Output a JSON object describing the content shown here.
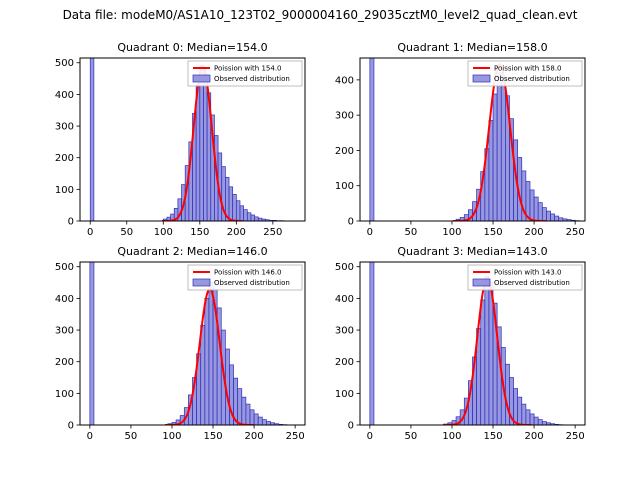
{
  "figure": {
    "suptitle": "Data file: modeM0/AS1A10_123T02_9000004160_29035cztM0_level2_quad_clean.evt"
  },
  "colors": {
    "bar_fill": "#7b7bd9",
    "bar_edge": "#2e2eb8",
    "curve": "#ff0000",
    "axis": "#000000",
    "legend_border": "#b0b0b0"
  },
  "chart_data": [
    {
      "type": "bar",
      "subtype": "histogram",
      "title": "Quadrant 0: Median=154.0",
      "median": 154.0,
      "legend": [
        "Poission with 154.0",
        "Observed distribution"
      ],
      "bin_start": 0,
      "bin_width": 5,
      "counts": [
        520,
        0,
        0,
        0,
        0,
        0,
        0,
        0,
        0,
        0,
        0,
        0,
        0,
        0,
        0,
        0,
        0,
        0,
        0,
        0,
        6,
        12,
        22,
        40,
        70,
        115,
        175,
        250,
        340,
        430,
        490,
        465,
        405,
        335,
        270,
        215,
        172,
        138,
        108,
        84,
        64,
        48,
        36,
        26,
        19,
        13,
        9,
        6,
        4,
        2,
        2,
        1,
        1,
        0
      ],
      "curve": {
        "type": "poisson",
        "lambda": 154.0,
        "sigma": 12.4,
        "amplitude": 490
      },
      "xlim": [
        -14,
        294
      ],
      "ylim": [
        0,
        515
      ],
      "xticks": [
        0,
        50,
        100,
        150,
        200,
        250
      ],
      "yticks": [
        0,
        100,
        200,
        300,
        400,
        500
      ]
    },
    {
      "type": "bar",
      "subtype": "histogram",
      "title": "Quadrant 1: Median=158.0",
      "median": 158.0,
      "legend": [
        "Poission with 158.0",
        "Observed distribution"
      ],
      "bin_start": 0,
      "bin_width": 5,
      "counts": [
        480,
        0,
        0,
        0,
        0,
        0,
        0,
        0,
        0,
        0,
        0,
        0,
        0,
        0,
        0,
        0,
        0,
        0,
        0,
        0,
        0,
        5,
        10,
        18,
        32,
        55,
        90,
        140,
        205,
        285,
        360,
        420,
        410,
        355,
        290,
        230,
        180,
        142,
        112,
        88,
        68,
        52,
        38,
        28,
        20,
        14,
        9,
        6,
        4,
        2,
        1
      ],
      "curve": {
        "type": "poisson",
        "lambda": 158.0,
        "sigma": 12.6,
        "amplitude": 445
      },
      "xlim": [
        -12,
        262
      ],
      "ylim": [
        0,
        462
      ],
      "xticks": [
        0,
        50,
        100,
        150,
        200,
        250
      ],
      "yticks": [
        0,
        100,
        200,
        300,
        400
      ]
    },
    {
      "type": "bar",
      "subtype": "histogram",
      "title": "Quadrant 2: Median=146.0",
      "median": 146.0,
      "legend": [
        "Poission with 146.0",
        "Observed distribution"
      ],
      "bin_start": 0,
      "bin_width": 5,
      "counts": [
        520,
        0,
        0,
        0,
        0,
        0,
        0,
        0,
        0,
        0,
        0,
        0,
        0,
        0,
        0,
        0,
        0,
        0,
        0,
        4,
        8,
        16,
        30,
        55,
        95,
        150,
        225,
        315,
        400,
        450,
        430,
        370,
        300,
        240,
        190,
        148,
        115,
        88,
        66,
        48,
        35,
        25,
        17,
        11,
        7,
        4,
        2,
        1
      ],
      "curve": {
        "type": "poisson",
        "lambda": 146.0,
        "sigma": 12.1,
        "amplitude": 430
      },
      "xlim": [
        -12,
        262
      ],
      "ylim": [
        0,
        515
      ],
      "xticks": [
        0,
        50,
        100,
        150,
        200,
        250
      ],
      "yticks": [
        0,
        100,
        200,
        300,
        400,
        500
      ]
    },
    {
      "type": "bar",
      "subtype": "histogram",
      "title": "Quadrant 3: Median=143.0",
      "median": 143.0,
      "legend": [
        "Poission with 143.0",
        "Observed distribution"
      ],
      "bin_start": 0,
      "bin_width": 5,
      "counts": [
        520,
        0,
        0,
        0,
        0,
        0,
        0,
        0,
        0,
        0,
        0,
        0,
        0,
        0,
        0,
        0,
        0,
        0,
        3,
        7,
        14,
        26,
        48,
        85,
        140,
        215,
        305,
        395,
        470,
        450,
        385,
        310,
        245,
        192,
        150,
        115,
        88,
        66,
        48,
        35,
        25,
        17,
        11,
        7,
        4,
        2,
        1
      ],
      "curve": {
        "type": "poisson",
        "lambda": 143.0,
        "sigma": 12.0,
        "amplitude": 465
      },
      "xlim": [
        -12,
        262
      ],
      "ylim": [
        0,
        515
      ],
      "xticks": [
        0,
        50,
        100,
        150,
        200,
        250
      ],
      "yticks": [
        0,
        100,
        200,
        300,
        400,
        500
      ]
    }
  ]
}
